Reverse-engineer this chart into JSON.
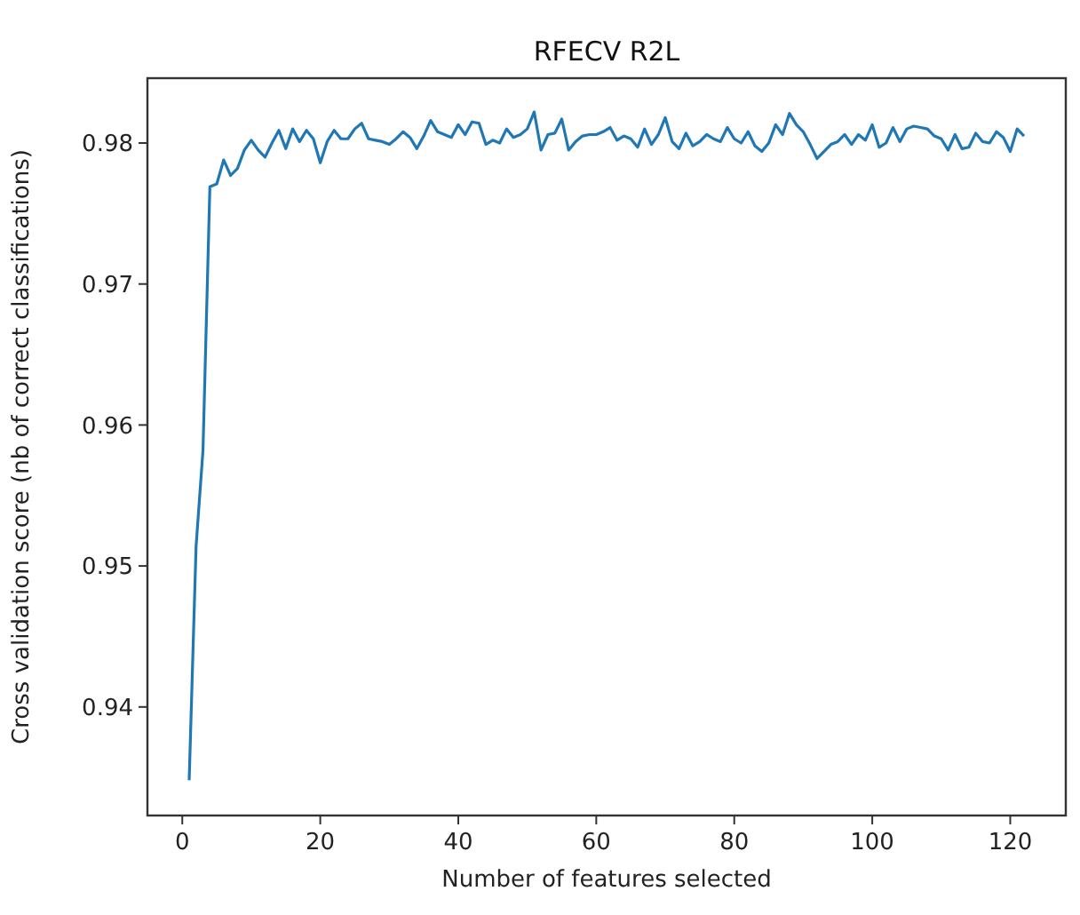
{
  "chart_data": {
    "type": "line",
    "title": "RFECV R2L",
    "xlabel": "Number of features selected",
    "ylabel": "Cross validation score (nb of correct classifications)",
    "xlim": [
      -5.05,
      128.05
    ],
    "xticks": [
      0,
      20,
      40,
      60,
      80,
      100,
      120
    ],
    "ylim": [
      0.9323,
      0.9846
    ],
    "yticks": [
      0.94,
      0.95,
      0.96,
      0.97,
      0.98
    ],
    "grid": false,
    "series": [
      {
        "color": "#1f77b4",
        "x": [
          1,
          2,
          3,
          4,
          5,
          6,
          7,
          8,
          9,
          10,
          11,
          12,
          13,
          14,
          15,
          16,
          17,
          18,
          19,
          20,
          21,
          22,
          23,
          24,
          25,
          26,
          27,
          28,
          29,
          30,
          31,
          32,
          33,
          34,
          35,
          36,
          37,
          38,
          39,
          40,
          41,
          42,
          43,
          44,
          45,
          46,
          47,
          48,
          49,
          50,
          51,
          52,
          53,
          54,
          55,
          56,
          57,
          58,
          59,
          60,
          61,
          62,
          63,
          64,
          65,
          66,
          67,
          68,
          69,
          70,
          71,
          72,
          73,
          74,
          75,
          76,
          77,
          78,
          79,
          80,
          81,
          82,
          83,
          84,
          85,
          86,
          87,
          88,
          89,
          90,
          91,
          92,
          93,
          94,
          95,
          96,
          97,
          98,
          99,
          100,
          101,
          102,
          103,
          104,
          105,
          106,
          107,
          108,
          109,
          110,
          111,
          112,
          113,
          114,
          115,
          116,
          117,
          118,
          119,
          120,
          121,
          122
        ],
        "values": [
          0.9348,
          0.9514,
          0.9582,
          0.9769,
          0.9771,
          0.9788,
          0.9777,
          0.9782,
          0.9795,
          0.9802,
          0.9795,
          0.979,
          0.98,
          0.9809,
          0.9796,
          0.981,
          0.9801,
          0.9809,
          0.9803,
          0.9786,
          0.9801,
          0.9809,
          0.9803,
          0.9803,
          0.981,
          0.9814,
          0.9803,
          0.9802,
          0.9801,
          0.9799,
          0.9803,
          0.9808,
          0.9804,
          0.9796,
          0.9805,
          0.9816,
          0.9808,
          0.9806,
          0.9804,
          0.9813,
          0.9806,
          0.9815,
          0.9814,
          0.9799,
          0.9802,
          0.98,
          0.981,
          0.9804,
          0.9806,
          0.981,
          0.9822,
          0.9795,
          0.9806,
          0.9807,
          0.9817,
          0.9795,
          0.9801,
          0.9805,
          0.9806,
          0.9806,
          0.9808,
          0.9811,
          0.9802,
          0.9805,
          0.9803,
          0.9797,
          0.981,
          0.9799,
          0.9806,
          0.9818,
          0.9801,
          0.9796,
          0.9807,
          0.9798,
          0.9801,
          0.9806,
          0.9803,
          0.9801,
          0.9811,
          0.9803,
          0.98,
          0.9808,
          0.9798,
          0.9794,
          0.98,
          0.9813,
          0.9806,
          0.9821,
          0.9813,
          0.9808,
          0.9799,
          0.9789,
          0.9794,
          0.9799,
          0.9801,
          0.9806,
          0.9799,
          0.9806,
          0.9802,
          0.9813,
          0.9797,
          0.98,
          0.9811,
          0.9801,
          0.981,
          0.9812,
          0.9811,
          0.981,
          0.9805,
          0.9803,
          0.9795,
          0.9806,
          0.9796,
          0.9797,
          0.9807,
          0.9801,
          0.98,
          0.9808,
          0.9804,
          0.9794,
          0.981,
          0.9805
        ]
      }
    ]
  }
}
